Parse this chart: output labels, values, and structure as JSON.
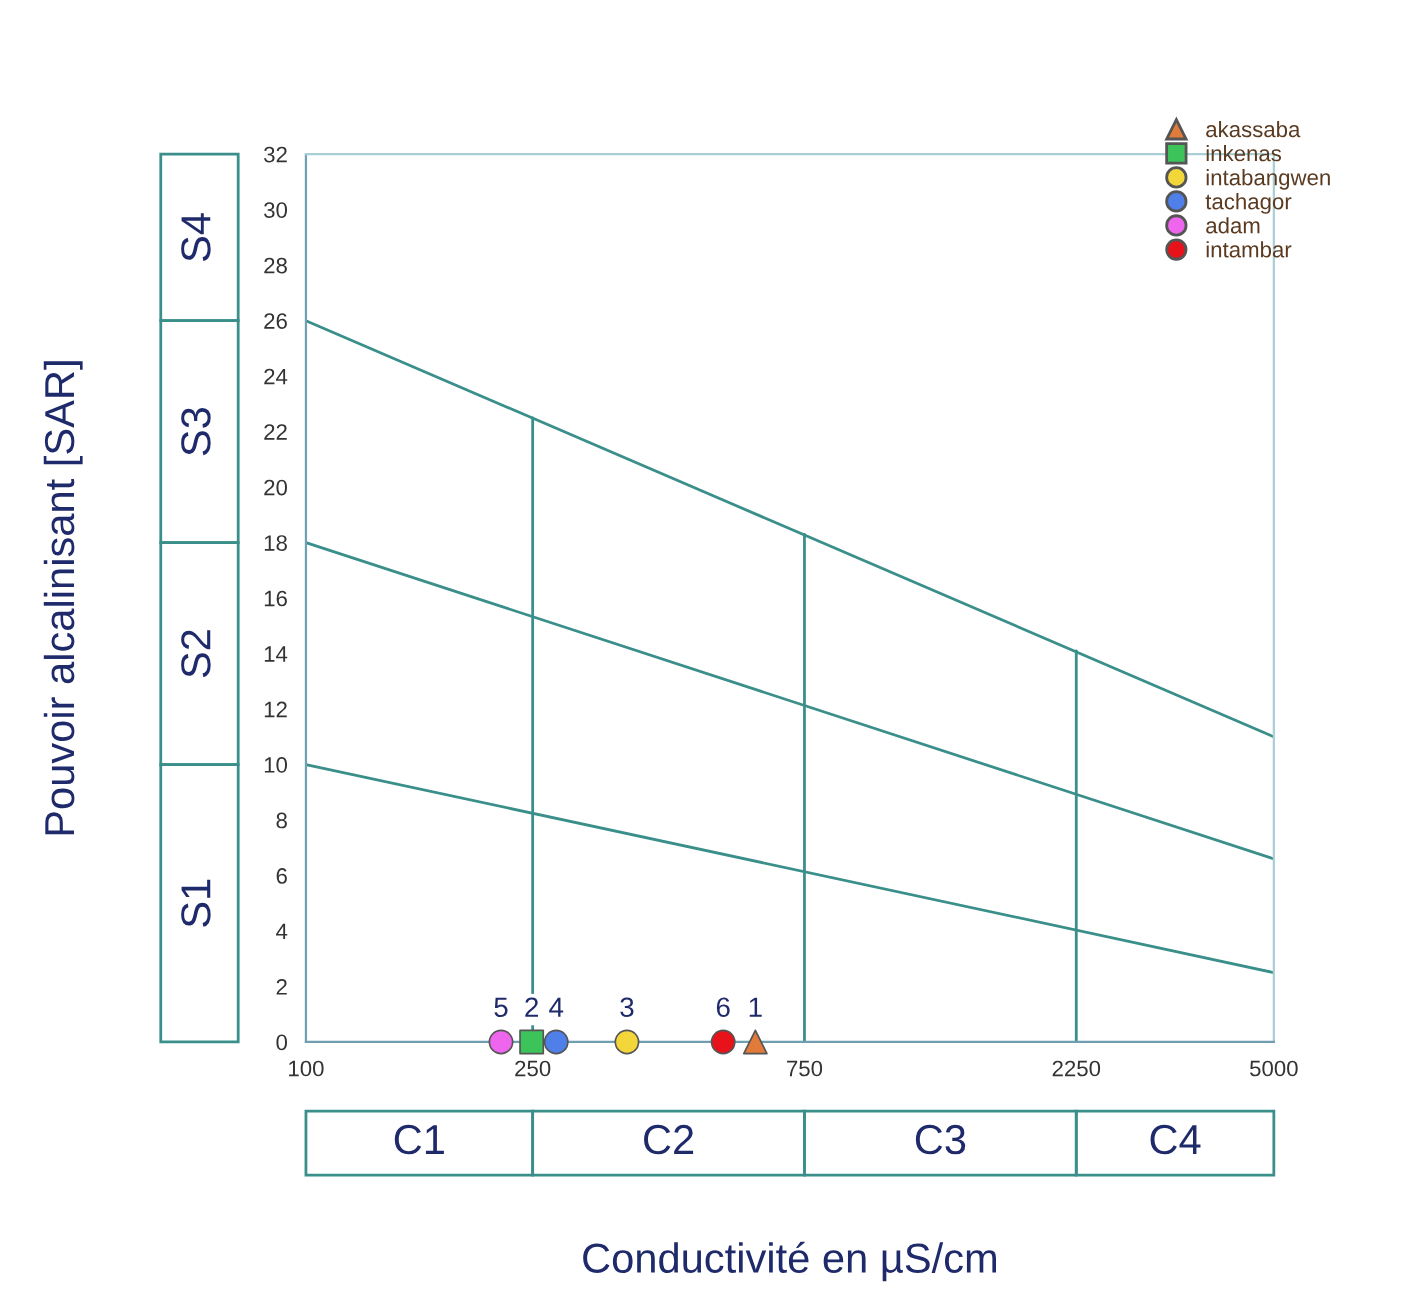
{
  "chart_data": {
    "type": "scatter",
    "xlabel": "Conductivité en µS/cm",
    "ylabel": "Pouvoir alcalinisant [SAR]",
    "log": "x",
    "xlim": [
      100,
      5000
    ],
    "xticks": [
      100,
      250,
      750,
      2250,
      5000
    ],
    "ylim": [
      0,
      32
    ],
    "yticks": [
      0,
      2,
      4,
      6,
      8,
      10,
      12,
      14,
      16,
      18,
      20,
      22,
      24,
      26,
      28,
      30,
      32
    ],
    "grid": false,
    "legend": "top right",
    "series": [
      {
        "name": "akassaba",
        "color": "#e07b39",
        "marker": "triangle",
        "x": [
          615
        ],
        "values": [
          0
        ]
      },
      {
        "name": "inkenas",
        "color": "#3cc35a",
        "marker": "square",
        "x": [
          249
        ],
        "values": [
          0
        ]
      },
      {
        "name": "intabangwen",
        "color": "#f2d63a",
        "x": [
          366
        ],
        "values": [
          0
        ]
      },
      {
        "name": "tachagor",
        "color": "#4f7fe8",
        "x": [
          275
        ],
        "values": [
          0
        ]
      },
      {
        "name": "adam",
        "color": "#ee66ee",
        "marker": "circle",
        "x": [
          220
        ],
        "values": [
          0
        ]
      },
      {
        "name": "intambar",
        "color": "#e8121b",
        "marker": "circle",
        "x": [
          540
        ],
        "values": [
          0
        ]
      },
      {
        "type": "line",
        "color": "#3a8f8a",
        "x": [
          100,
          5000
        ],
        "values": [
          26,
          11
        ]
      },
      {
        "type": "line",
        "color": "#3a8f8a",
        "x": [
          100,
          5000
        ],
        "values": [
          18,
          6.6
        ]
      },
      {
        "type": "line",
        "color": "#3a8f8a",
        "x": [
          100,
          5000
        ],
        "values": [
          10,
          2.5
        ]
      },
      {
        "type": "line",
        "color": "#3a8f8a",
        "x": [
          250,
          250
        ],
        "values": [
          0,
          22.5
        ]
      },
      {
        "type": "line",
        "color": "#3a8f8a",
        "x": [
          750,
          750
        ],
        "values": [
          0,
          18.3
        ]
      },
      {
        "type": "line",
        "color": "#3a8f8a",
        "x": [
          2250,
          2250
        ],
        "values": [
          0,
          14.1
        ]
      }
    ],
    "annotations": [
      "S1",
      "S2",
      "S3",
      "S4",
      "C1",
      "C2",
      "C3",
      "C4",
      {
        "text": "1",
        "x": 615,
        "y": 0
      },
      {
        "text": "2",
        "x": 249,
        "y": 0
      },
      {
        "text": "3",
        "x": 366,
        "y": 0
      },
      {
        "text": "4",
        "x": 275,
        "y": 0
      },
      {
        "text": "5",
        "x": 220,
        "y": 0
      },
      {
        "text": "6",
        "x": 540,
        "y": 0
      }
    ]
  }
}
